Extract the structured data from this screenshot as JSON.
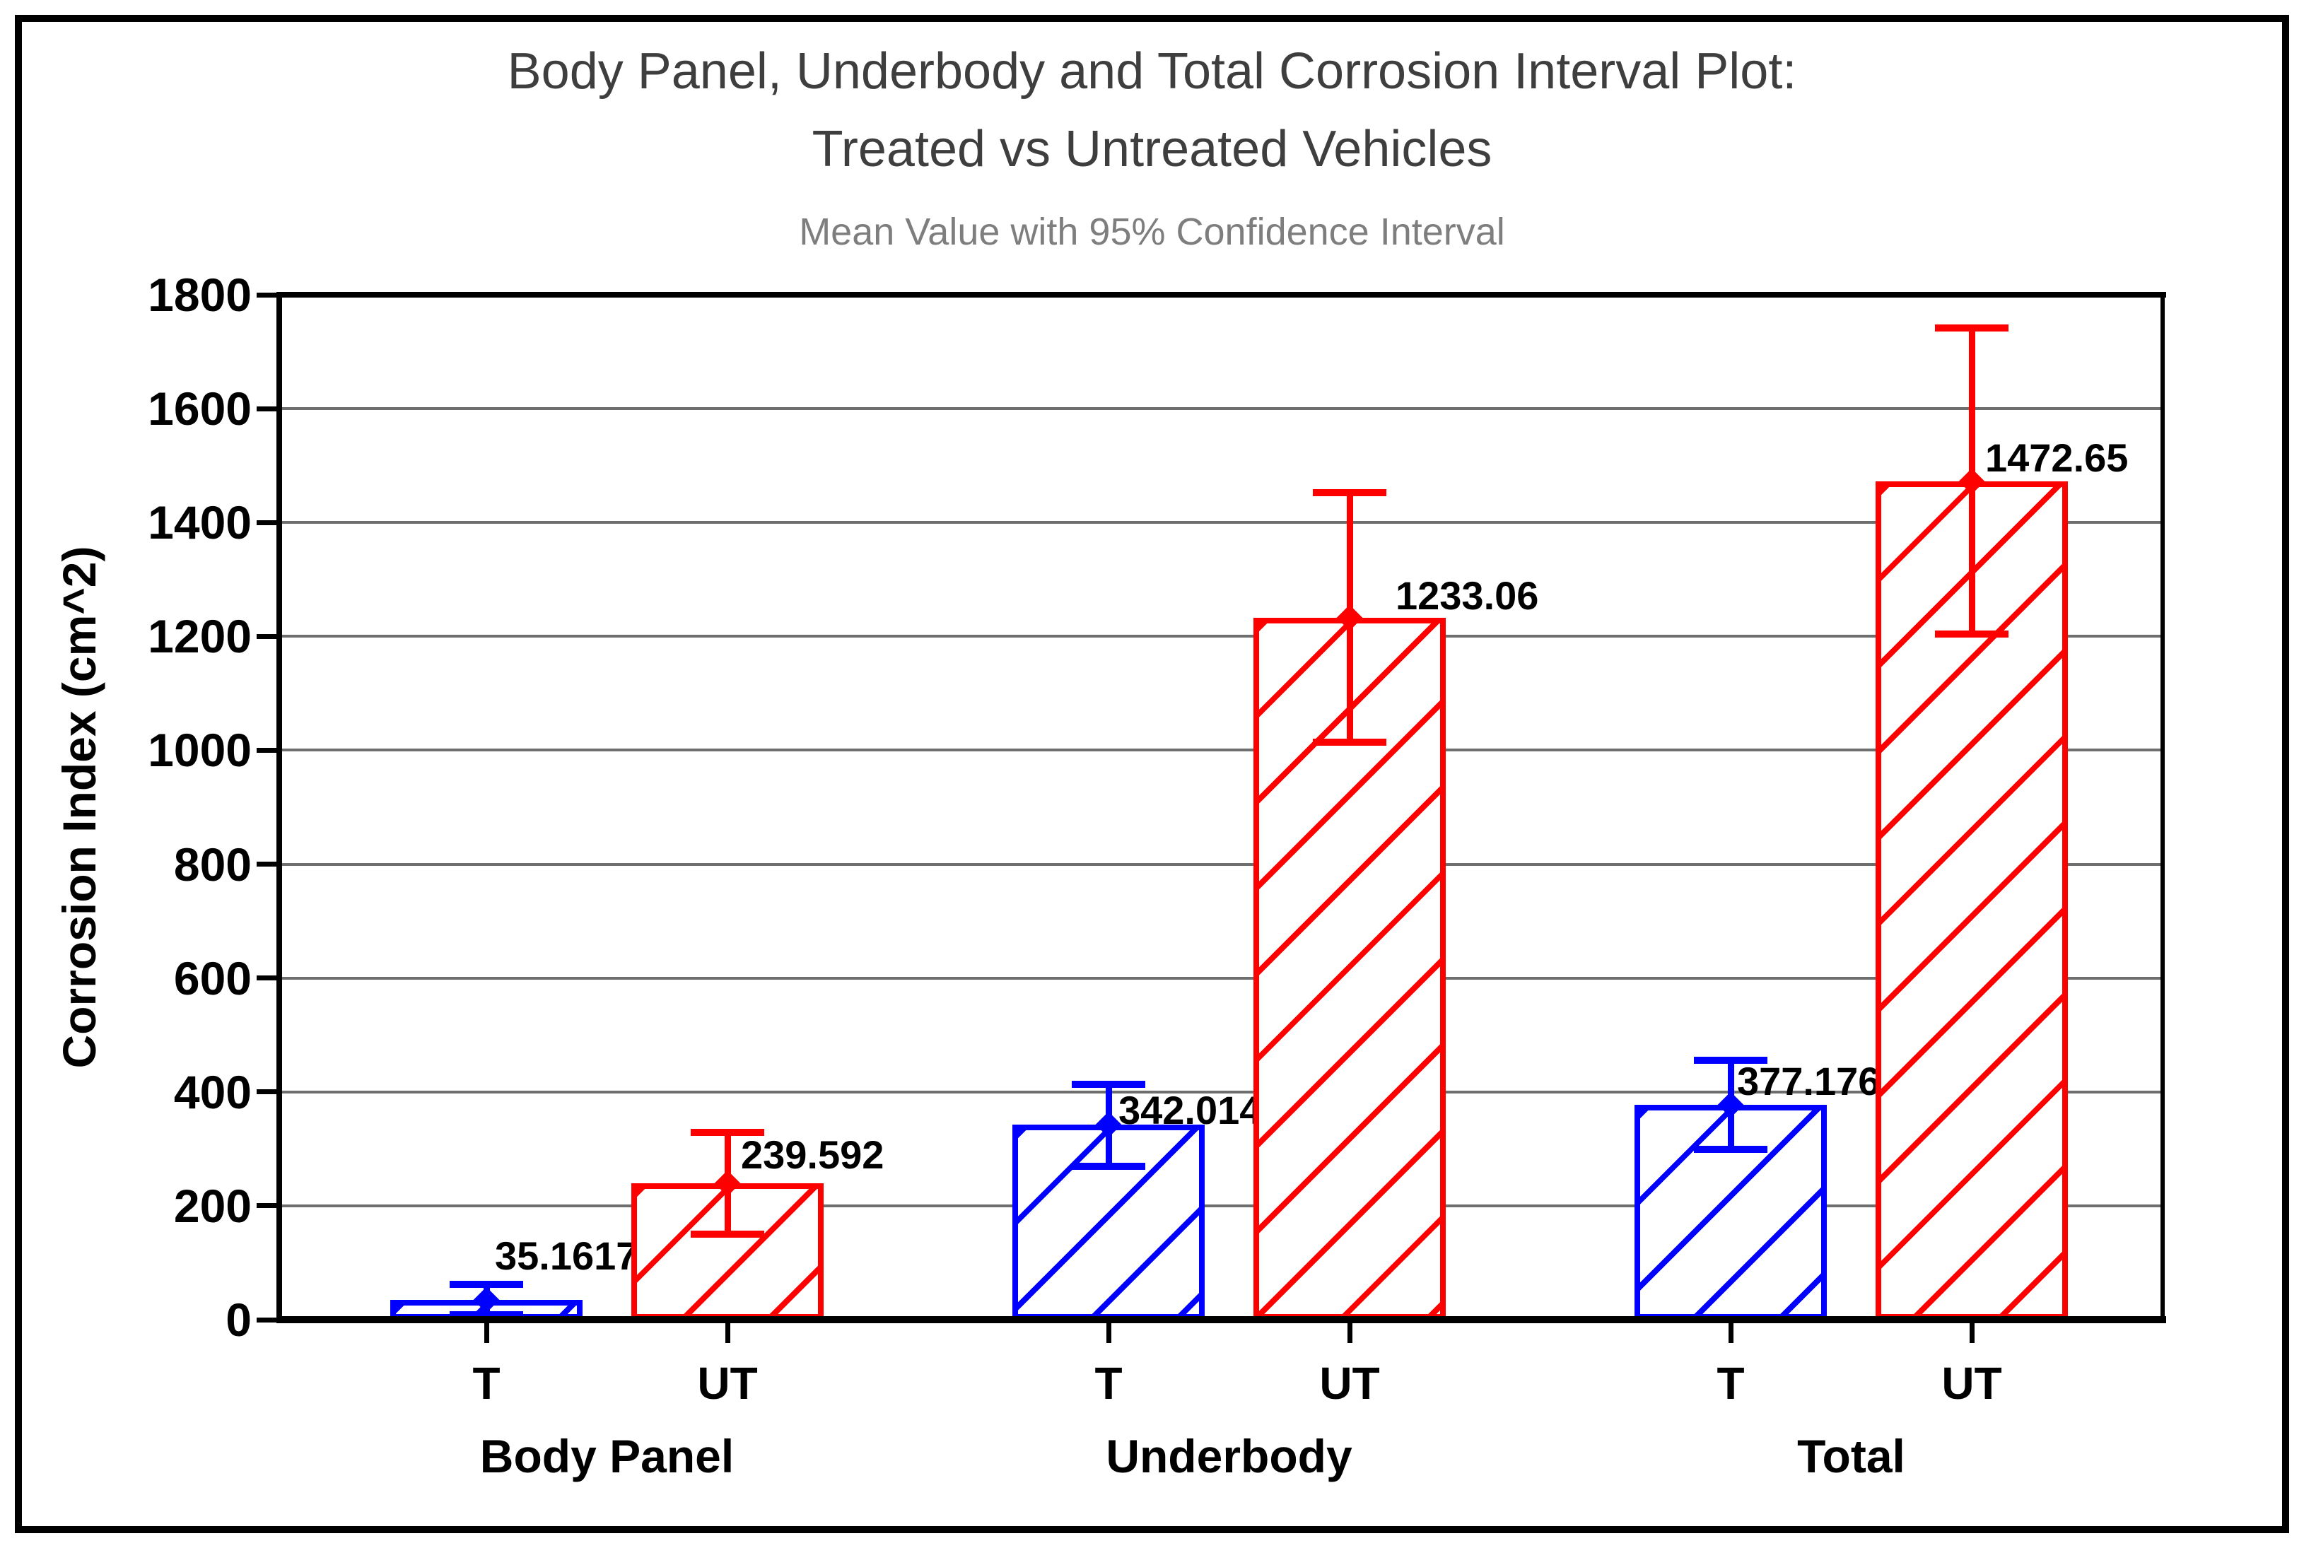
{
  "header": {
    "title_line1": "Body Panel, Underbody and Total Corrosion Interval Plot:",
    "title_line2": "Treated vs Untreated Vehicles",
    "subtitle": "Mean Value with 95% Confidence Interval"
  },
  "colors": {
    "treated": "#0000FF",
    "untreated": "#FF0000",
    "gridline": "#6E6E6E",
    "axis_frame": "#000000",
    "title_text": "#3E3E3E",
    "subtitle_text": "#7E7E7E",
    "label_text": "#000000"
  },
  "chart_data": {
    "type": "bar",
    "title": "Body Panel, Underbody and Total Corrosion Interval Plot: Treated vs Untreated Vehicles",
    "subtitle": "Mean Value with 95% Confidence Interval",
    "xlabel": "",
    "ylabel": "Corrosion Index (cm^2)",
    "ylim": [
      0,
      1800
    ],
    "yticks": [
      0,
      200,
      400,
      600,
      800,
      1000,
      1200,
      1400,
      1600,
      1800
    ],
    "grid": true,
    "legend_position": "none",
    "error_bars": "95% confidence interval",
    "hatch_style": "diagonal",
    "series_legend": {
      "T": "Treated",
      "UT": "Untreated"
    },
    "groups": [
      {
        "label": "Body Panel",
        "bars": [
          {
            "x_label": "T",
            "series": "Treated",
            "mean": 35.1617,
            "mean_label": "35.1617",
            "ci_low": 8.2,
            "ci_high": 62.2
          },
          {
            "x_label": "UT",
            "series": "Untreated",
            "mean": 239.592,
            "mean_label": "239.592",
            "ci_low": 150.1,
            "ci_high": 329.1
          }
        ]
      },
      {
        "label": "Underbody",
        "bars": [
          {
            "x_label": "T",
            "series": "Treated",
            "mean": 342.014,
            "mean_label": "342.014",
            "ci_low": 270.0,
            "ci_high": 414.0
          },
          {
            "x_label": "UT",
            "series": "Untreated",
            "mean": 1233.06,
            "mean_label": "1233.06",
            "ci_low": 1014.0,
            "ci_high": 1452.1
          }
        ]
      },
      {
        "label": "Total",
        "bars": [
          {
            "x_label": "T",
            "series": "Treated",
            "mean": 377.176,
            "mean_label": "377.176",
            "ci_low": 298.7,
            "ci_high": 455.7
          },
          {
            "x_label": "UT",
            "series": "Untreated",
            "mean": 1472.65,
            "mean_label": "1472.65",
            "ci_low": 1203.7,
            "ci_high": 1741.6
          }
        ]
      }
    ]
  }
}
